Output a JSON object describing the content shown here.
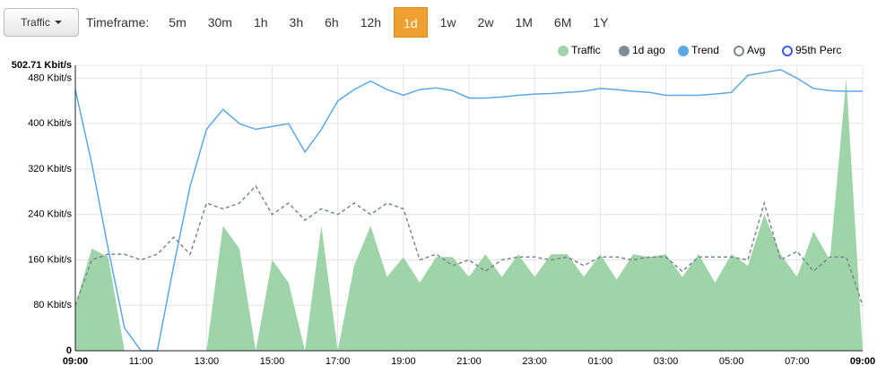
{
  "toolbar": {
    "button": "Traffic",
    "label": "Timeframe:",
    "options": [
      "5m",
      "30m",
      "1h",
      "3h",
      "6h",
      "12h",
      "1d",
      "1w",
      "2w",
      "1M",
      "6M",
      "1Y"
    ],
    "active_index": 6
  },
  "chart_data": {
    "type": "area",
    "x": [
      "09:00",
      "09:30",
      "10:00",
      "10:30",
      "11:00",
      "11:30",
      "12:00",
      "12:30",
      "13:00",
      "13:30",
      "14:00",
      "14:30",
      "15:00",
      "15:30",
      "16:00",
      "16:30",
      "17:00",
      "17:30",
      "18:00",
      "18:30",
      "19:00",
      "19:30",
      "20:00",
      "20:30",
      "21:00",
      "21:30",
      "22:00",
      "22:30",
      "23:00",
      "23:30",
      "00:00",
      "00:30",
      "01:00",
      "01:30",
      "02:00",
      "02:30",
      "03:00",
      "03:30",
      "04:00",
      "04:30",
      "05:00",
      "05:30",
      "06:00",
      "06:30",
      "07:00",
      "07:30",
      "08:00",
      "08:30",
      "09:00"
    ],
    "series": [
      {
        "name": "Traffic",
        "color": "#9fd4a8",
        "style": "area",
        "marker": "filled",
        "values": [
          80,
          180,
          165,
          0,
          0,
          0,
          0,
          0,
          0,
          220,
          180,
          0,
          160,
          120,
          0,
          220,
          0,
          150,
          220,
          130,
          165,
          120,
          165,
          165,
          130,
          170,
          130,
          170,
          130,
          170,
          170,
          130,
          170,
          125,
          170,
          165,
          170,
          130,
          170,
          120,
          170,
          150,
          240,
          170,
          130,
          210,
          160,
          480,
          0
        ]
      },
      {
        "name": "1d ago",
        "color": "#7f8c99",
        "style": "line",
        "marker": "filled",
        "values": [
          null,
          null,
          null,
          null,
          null,
          null,
          null,
          null,
          null,
          null,
          null,
          null,
          null,
          null,
          null,
          null,
          null,
          null,
          null,
          null,
          null,
          null,
          null,
          null,
          null,
          null,
          null,
          null,
          null,
          null,
          null,
          null,
          null,
          null,
          null,
          null,
          null,
          null,
          null,
          null,
          null,
          null,
          null,
          null,
          null,
          null,
          null,
          null,
          null
        ]
      },
      {
        "name": "Trend",
        "color": "#5aa8e6",
        "style": "line",
        "marker": "filled",
        "values": [
          460,
          330,
          180,
          40,
          0,
          0,
          150,
          290,
          390,
          425,
          400,
          390,
          395,
          400,
          350,
          390,
          440,
          460,
          475,
          460,
          450,
          460,
          463,
          458,
          445,
          445,
          447,
          450,
          452,
          453,
          455,
          457,
          462,
          460,
          457,
          455,
          450,
          450,
          450,
          452,
          455,
          485,
          490,
          495,
          480,
          462,
          458,
          457,
          457
        ]
      },
      {
        "name": "Avg",
        "color": "#7d8594",
        "style": "dashed",
        "marker": "hollow",
        "values": [
          80,
          160,
          170,
          170,
          160,
          170,
          200,
          170,
          260,
          250,
          260,
          290,
          240,
          260,
          230,
          250,
          240,
          260,
          240,
          260,
          250,
          160,
          170,
          150,
          160,
          140,
          160,
          165,
          165,
          160,
          165,
          150,
          165,
          165,
          160,
          165,
          165,
          140,
          165,
          165,
          165,
          160,
          260,
          160,
          175,
          140,
          165,
          165,
          80
        ]
      },
      {
        "name": "95th Perc",
        "color": "#3b5bdb",
        "style": "line",
        "marker": "hollow",
        "values": [
          null,
          null,
          null,
          null,
          null,
          null,
          null,
          null,
          null,
          null,
          null,
          null,
          null,
          null,
          null,
          null,
          null,
          null,
          null,
          null,
          null,
          null,
          null,
          null,
          null,
          null,
          null,
          null,
          null,
          null,
          null,
          null,
          null,
          null,
          null,
          null,
          null,
          null,
          null,
          null,
          null,
          null,
          null,
          null,
          null,
          null,
          null,
          null,
          null
        ]
      }
    ],
    "ylim": [
      0,
      502.71
    ],
    "yticks": [
      0,
      {
        "value": 80,
        "label": "80 Kbit/s"
      },
      {
        "value": 160,
        "label": "160 Kbit/s"
      },
      {
        "value": 240,
        "label": "240 Kbit/s"
      },
      {
        "value": 320,
        "label": "320 Kbit/s"
      },
      {
        "value": 400,
        "label": "400 Kbit/s"
      },
      {
        "value": 480,
        "label": "480 Kbit/s"
      },
      {
        "value": 502.71,
        "label": "502.71 Kbit/s"
      }
    ],
    "xticks": [
      "09:00",
      "11:00",
      "13:00",
      "15:00",
      "17:00",
      "19:00",
      "21:00",
      "23:00",
      "01:00",
      "03:00",
      "05:00",
      "07:00",
      "09:00"
    ],
    "grid": true
  }
}
